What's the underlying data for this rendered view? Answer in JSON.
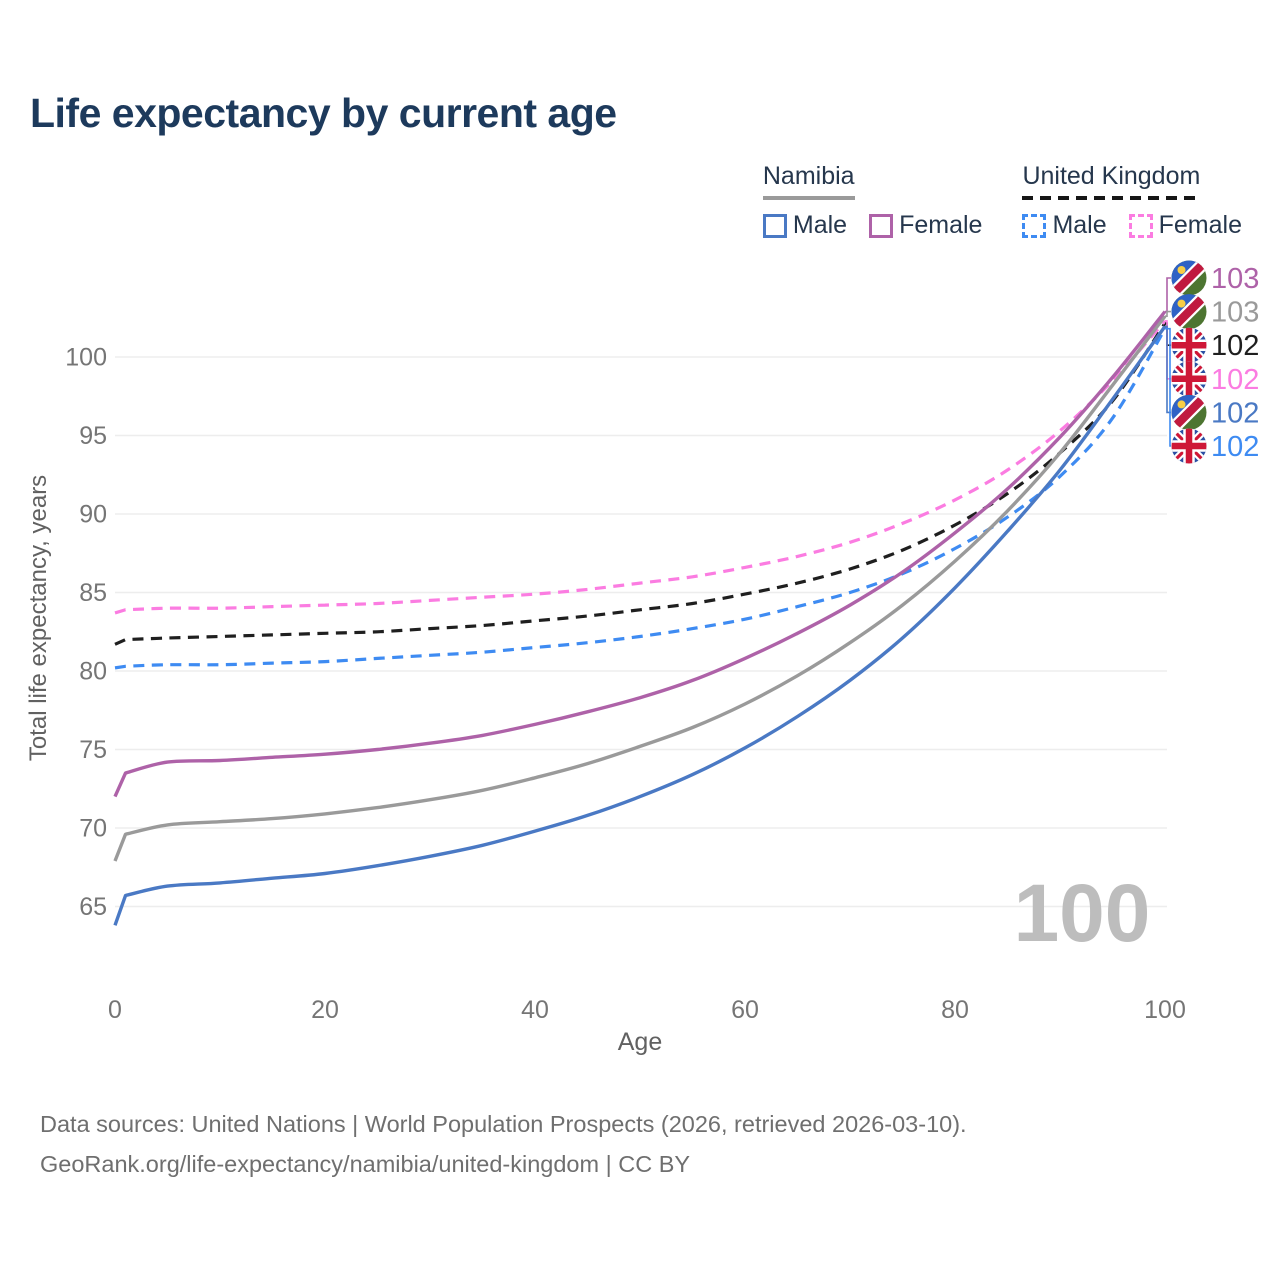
{
  "title": "Life expectancy by current age",
  "legend": {
    "groups": [
      {
        "country": "Namibia",
        "style": "solid",
        "items": [
          {
            "label": "Male"
          },
          {
            "label": "Female"
          }
        ]
      },
      {
        "country": "United Kingdom",
        "style": "dashed",
        "items": [
          {
            "label": "Male"
          },
          {
            "label": "Female"
          }
        ]
      }
    ]
  },
  "chart_data": {
    "type": "line",
    "title": "Life expectancy by current age",
    "xlabel": "Age",
    "ylabel": "Total life expectancy, years",
    "grid": true,
    "legend_position": "top-right",
    "watermark": "100",
    "x": [
      0,
      1,
      5,
      10,
      15,
      20,
      25,
      30,
      35,
      40,
      45,
      50,
      55,
      60,
      65,
      70,
      75,
      80,
      85,
      90,
      95,
      100
    ],
    "xticks": [
      0,
      20,
      40,
      60,
      80,
      100
    ],
    "yticks": [
      65,
      70,
      75,
      80,
      85,
      90,
      95,
      100
    ],
    "xlim": [
      0,
      100
    ],
    "ylim": [
      63,
      103.5
    ],
    "series": [
      {
        "id": "nam_female",
        "name": "Namibia Female",
        "country": "Namibia",
        "sex": "Female",
        "line_style": "solid",
        "color": "#ae62a8",
        "flag": "namibia",
        "end_label": "103",
        "values": [
          72.0,
          73.5,
          74.2,
          74.3,
          74.5,
          74.7,
          75.0,
          75.4,
          75.9,
          76.6,
          77.4,
          78.3,
          79.4,
          80.8,
          82.4,
          84.2,
          86.3,
          88.8,
          91.6,
          94.9,
          98.7,
          102.9
        ]
      },
      {
        "id": "nam_both",
        "name": "Namibia Both sexes",
        "country": "Namibia",
        "sex": "Both",
        "line_style": "solid",
        "color": "#9a9a9a",
        "flag": "namibia",
        "end_label": "103",
        "values": [
          67.9,
          69.6,
          70.2,
          70.4,
          70.6,
          70.9,
          71.3,
          71.8,
          72.4,
          73.2,
          74.1,
          75.2,
          76.4,
          77.9,
          79.7,
          81.8,
          84.2,
          87.0,
          90.2,
          93.9,
          98.2,
          102.6
        ]
      },
      {
        "id": "uk_both",
        "name": "United Kingdom Both sexes",
        "country": "United Kingdom",
        "sex": "Both",
        "line_style": "dashed",
        "color": "#1f1f1f",
        "flag": "uk",
        "end_label": "102",
        "values": [
          81.7,
          82.0,
          82.1,
          82.2,
          82.3,
          82.4,
          82.5,
          82.7,
          82.9,
          83.2,
          83.5,
          83.9,
          84.3,
          84.9,
          85.6,
          86.5,
          87.7,
          89.3,
          91.3,
          93.9,
          97.2,
          102.15
        ]
      },
      {
        "id": "uk_female",
        "name": "United Kingdom Female",
        "country": "United Kingdom",
        "sex": "Female",
        "line_style": "dashed",
        "color": "#fb7ce1",
        "flag": "uk",
        "end_label": "102",
        "values": [
          83.7,
          83.9,
          84.0,
          84.0,
          84.1,
          84.2,
          84.3,
          84.5,
          84.7,
          84.9,
          85.2,
          85.6,
          86.0,
          86.6,
          87.3,
          88.2,
          89.4,
          90.9,
          92.8,
          95.3,
          98.5,
          102.3
        ]
      },
      {
        "id": "nam_male",
        "name": "Namibia Male",
        "country": "Namibia",
        "sex": "Male",
        "line_style": "solid",
        "color": "#4a79c4",
        "flag": "namibia",
        "end_label": "102",
        "values": [
          63.8,
          65.7,
          66.3,
          66.5,
          66.8,
          67.1,
          67.6,
          68.2,
          68.9,
          69.8,
          70.8,
          72.0,
          73.4,
          75.1,
          77.1,
          79.4,
          82.1,
          85.3,
          88.9,
          92.8,
          97.3,
          101.95
        ]
      },
      {
        "id": "uk_male",
        "name": "United Kingdom Male",
        "country": "United Kingdom",
        "sex": "Male",
        "line_style": "dashed",
        "color": "#3e8bf2",
        "flag": "uk",
        "end_label": "102",
        "values": [
          80.2,
          80.3,
          80.4,
          80.4,
          80.5,
          80.6,
          80.8,
          81.0,
          81.2,
          81.5,
          81.8,
          82.2,
          82.7,
          83.3,
          84.1,
          85.0,
          86.2,
          87.8,
          89.8,
          92.4,
          96.1,
          101.8
        ]
      }
    ]
  },
  "footer": {
    "line1": "Data sources: United Nations | World Population Prospects (2026, retrieved 2026-03-10).",
    "line2": "GeoRank.org/life-expectancy/namibia/united-kingdom | CC BY"
  },
  "colors": {
    "title": "#1d3a5c",
    "axis_text": "#757575",
    "axis_title": "#616161",
    "gridline": "#ededed",
    "watermark": "#bdbdbd",
    "legend_text": "#26374d",
    "namibia_male": "#4a79c4",
    "namibia_female": "#ae62a8",
    "namibia_both": "#9a9a9a",
    "uk_male": "#3e8bf2",
    "uk_female": "#fb7ce1",
    "uk_both": "#1f1f1f"
  }
}
